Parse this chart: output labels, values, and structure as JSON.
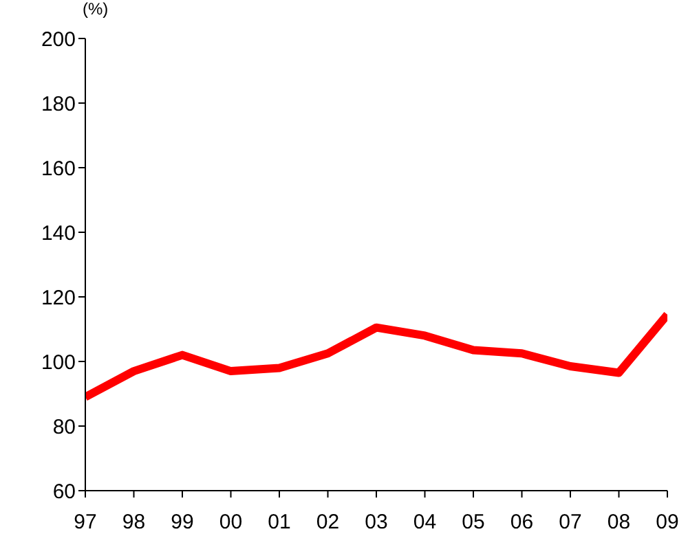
{
  "chart_data": {
    "type": "line",
    "ylabel": "(%)",
    "categories": [
      "97",
      "98",
      "99",
      "00",
      "01",
      "02",
      "03",
      "04",
      "05",
      "06",
      "07",
      "08",
      "09"
    ],
    "series": [
      {
        "color": "#ff0000",
        "values": [
          89,
          97,
          102,
          97,
          98,
          102.5,
          110.5,
          108,
          103.5,
          102.5,
          98.5,
          96.5,
          114.5
        ]
      }
    ],
    "ylim": [
      60,
      200
    ],
    "yticks": [
      60,
      80,
      100,
      120,
      140,
      160,
      180,
      200
    ],
    "grid": false,
    "legend": false,
    "marker": "none",
    "line_style": "solid"
  }
}
